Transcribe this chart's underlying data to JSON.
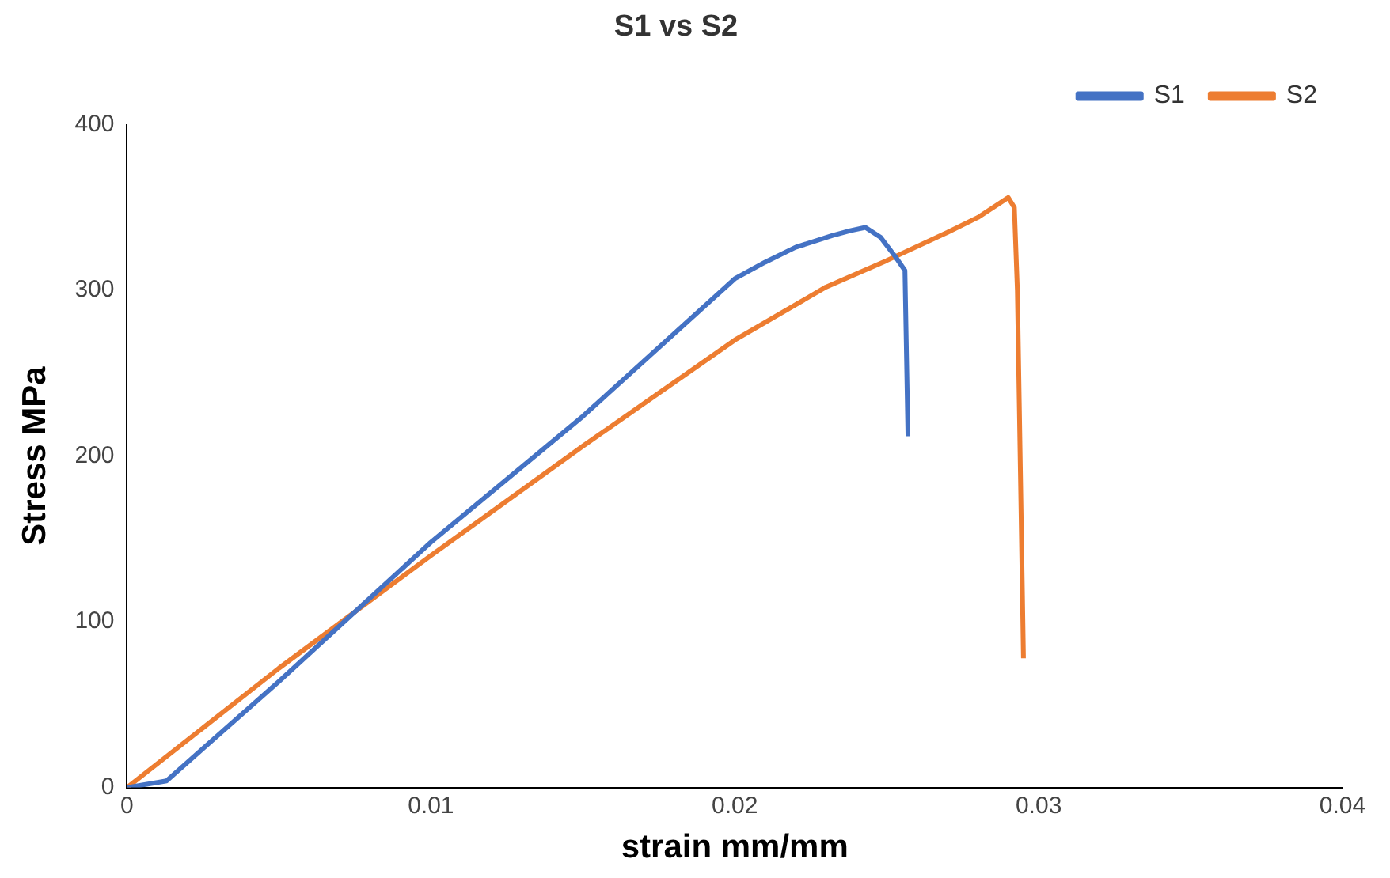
{
  "chart_data": {
    "type": "line",
    "title": "S1 vs S2",
    "xlabel": "strain mm/mm",
    "ylabel": "Stress MPa",
    "xlim": [
      0,
      0.04
    ],
    "xticks": [
      0,
      0.01,
      0.02,
      0.03,
      0.04
    ],
    "ylim": [
      0,
      400
    ],
    "yticks": [
      0,
      100,
      200,
      300,
      400
    ],
    "grid": false,
    "legend": "top right",
    "marker": "none",
    "line_style": "solid",
    "series": [
      {
        "name": "S1",
        "color": "#4472c4",
        "x": [
          0,
          0.001,
          0.0013,
          0.005,
          0.01,
          0.015,
          0.02,
          0.021,
          0.022,
          0.0232,
          0.0238,
          0.0243,
          0.0248,
          0.0253,
          0.0256,
          0.0257
        ],
        "values": [
          0,
          3,
          4,
          64,
          148,
          224,
          307,
          317,
          326,
          333,
          336,
          338,
          332,
          320,
          312,
          212
        ]
      },
      {
        "name": "S2",
        "color": "#ed7d31",
        "x": [
          0,
          0.005,
          0.01,
          0.015,
          0.02,
          0.023,
          0.025,
          0.027,
          0.028,
          0.029,
          0.0292,
          0.0293,
          0.0294,
          0.0295
        ],
        "values": [
          0,
          72,
          140,
          206,
          270,
          302,
          318,
          335,
          344,
          356,
          350,
          300,
          190,
          78
        ]
      }
    ]
  }
}
